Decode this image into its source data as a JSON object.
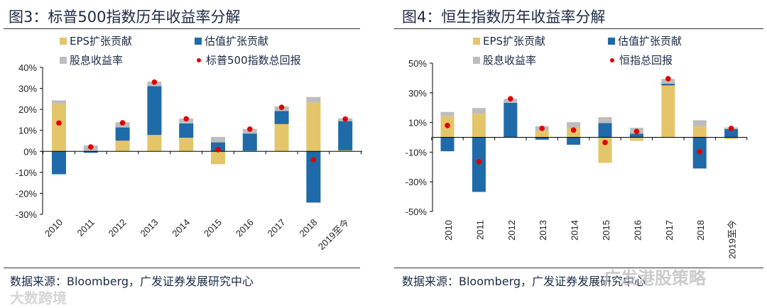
{
  "colors": {
    "eps": "#e5c56a",
    "valuation": "#1f6aa8",
    "dividend": "#bdbdbd",
    "total": "#e00000"
  },
  "chart_data": [
    {
      "type": "bar",
      "title": "图3：标普500指数历年收益率分解",
      "legend": {
        "eps": "EPS扩张贡献",
        "valuation": "估值扩张贡献",
        "dividend": "股息收益率",
        "total": "标普500指数总回报"
      },
      "categories": [
        "2010",
        "2011",
        "2012",
        "2013",
        "2014",
        "2015",
        "2016",
        "2017",
        "2018",
        "2019至今"
      ],
      "series": [
        {
          "name": "EPS扩张贡献",
          "key": "eps",
          "values": [
            22.5,
            0,
            5.1,
            7.8,
            6.5,
            -6.1,
            0.3,
            13.0,
            23.3,
            0.5
          ]
        },
        {
          "name": "估值扩张贡献",
          "key": "valuation",
          "values": [
            -10.9,
            -0.7,
            6.3,
            23.3,
            6.8,
            4.3,
            8.2,
            6.2,
            -24.4,
            13.9
          ]
        },
        {
          "name": "股息收益率",
          "key": "dividend",
          "values": [
            1.8,
            2.8,
            2.5,
            2.1,
            2.3,
            2.6,
            2.2,
            2.2,
            2.6,
            1.3
          ]
        },
        {
          "name": "标普500指数总回报",
          "key": "total",
          "values": [
            13.5,
            2.1,
            13.6,
            33.0,
            15.5,
            0.8,
            10.6,
            21.0,
            -4.0,
            15.4
          ]
        }
      ],
      "yticks": [
        "40%",
        "30%",
        "20%",
        "10%",
        "0%",
        "-10%",
        "-20%",
        "-30%"
      ],
      "ylim": [
        -30,
        40
      ],
      "source": "数据来源：Bloomberg，广发证券发展研究中心"
    },
    {
      "type": "bar",
      "title": "图4：恒生指数历年收益率分解",
      "legend": {
        "eps": "EPS扩张贡献",
        "valuation": "估值扩张贡献",
        "dividend": "股息收益率",
        "total": "恒指总回报"
      },
      "categories": [
        "2010",
        "2011",
        "2012",
        "2013",
        "2014",
        "2015",
        "2016",
        "2017",
        "2018",
        "2019至今"
      ],
      "series": [
        {
          "name": "EPS扩张贡献",
          "key": "eps",
          "values": [
            14.2,
            16.0,
            0,
            4.6,
            6.1,
            -17.2,
            -2.4,
            35.0,
            7.5,
            -1.2
          ]
        },
        {
          "name": "估值扩张贡献",
          "key": "valuation",
          "values": [
            -9.4,
            -36.8,
            23.3,
            -1.6,
            -5.0,
            9.6,
            2.4,
            1.1,
            -21.0,
            5.6
          ]
        },
        {
          "name": "股息收益率",
          "key": "dividend",
          "values": [
            2.9,
            3.8,
            2.7,
            2.9,
            4.1,
            4.0,
            4.0,
            3.3,
            4.0,
            1.1
          ]
        },
        {
          "name": "恒指总回报",
          "key": "total",
          "values": [
            8.0,
            -16.4,
            26.0,
            6.0,
            4.9,
            -3.5,
            4.0,
            39.5,
            -9.7,
            6.0
          ]
        }
      ],
      "yticks": [
        "50%",
        "30%",
        "10%",
        "-10%",
        "-30%",
        "-50%"
      ],
      "ylim": [
        -50,
        50
      ],
      "source": "数据来源：Bloomberg，广发证券发展研究中心"
    }
  ],
  "watermarks": {
    "left": "大数跨境",
    "right": "广发港股策略"
  }
}
